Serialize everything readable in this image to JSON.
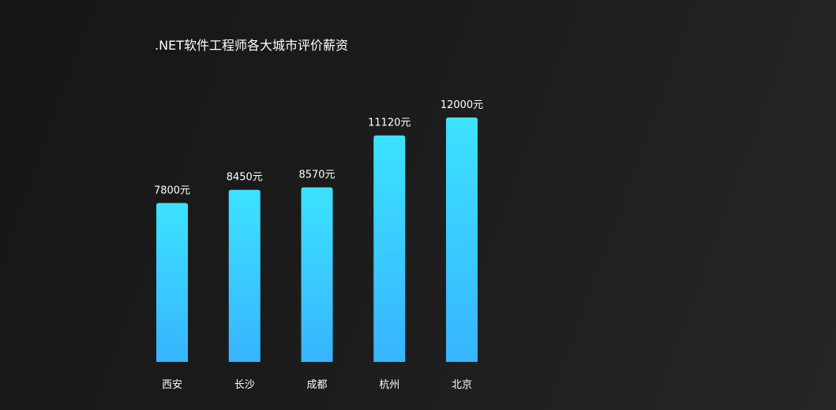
{
  "chart_data": {
    "type": "bar",
    "title": ".NET软件工程师各大城市评价薪资",
    "categories": [
      "西安",
      "长沙",
      "成都",
      "杭州",
      "北京"
    ],
    "values": [
      7800,
      8450,
      8570,
      11120,
      12000
    ],
    "value_suffix": "元",
    "ylim": [
      0,
      12000
    ],
    "grid": false,
    "legend": "none",
    "colors": {
      "bar_top": "#3ce2ff",
      "bar_bottom": "#38b4ff",
      "text": "#ffffff"
    }
  }
}
